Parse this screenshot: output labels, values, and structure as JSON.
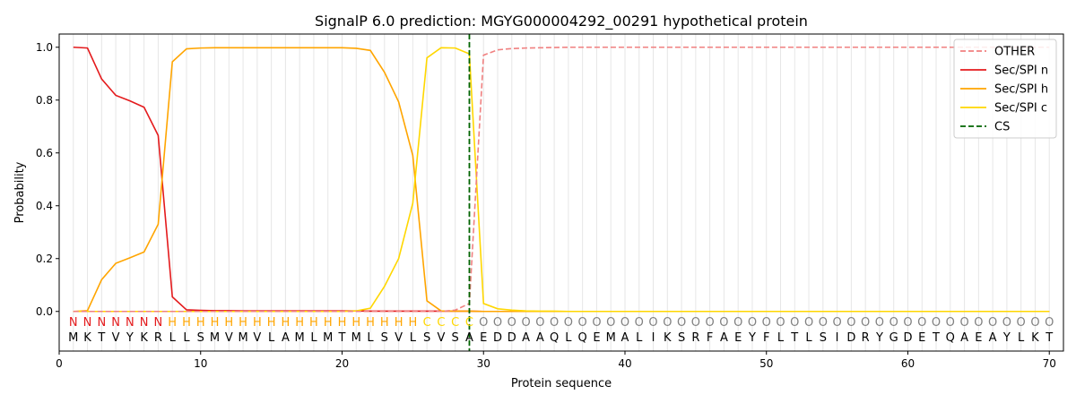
{
  "chart_data": {
    "type": "line",
    "title": "SignalP 6.0 prediction: MGYG000004292_00291 hypothetical protein",
    "xlabel": "Protein sequence",
    "ylabel": "Probability",
    "xlim": [
      0,
      71
    ],
    "ylim": [
      -0.15,
      1.05
    ],
    "xticks": [
      0,
      10,
      20,
      30,
      40,
      50,
      60,
      70
    ],
    "yticks": [
      0.0,
      0.2,
      0.4,
      0.6,
      0.8,
      1.0
    ],
    "xtick_labels": [
      "0",
      "10",
      "20",
      "30",
      "40",
      "50",
      "60",
      "70"
    ],
    "ytick_labels": [
      "0.0",
      "0.2",
      "0.4",
      "0.6",
      "0.8",
      "1.0"
    ],
    "grid": "vertical lines at each residue",
    "legend_position": "top-right",
    "sequence": [
      "M",
      "K",
      "T",
      "V",
      "Y",
      "K",
      "R",
      "L",
      "L",
      "S",
      "M",
      "V",
      "M",
      "V",
      "L",
      "A",
      "M",
      "L",
      "M",
      "T",
      "M",
      "L",
      "S",
      "V",
      "L",
      "S",
      "V",
      "S",
      "A",
      "E",
      "D",
      "D",
      "A",
      "A",
      "Q",
      "L",
      "Q",
      "E",
      "M",
      "A",
      "L",
      "I",
      "K",
      "S",
      "R",
      "F",
      "A",
      "E",
      "Y",
      "F",
      "L",
      "T",
      "L",
      "S",
      "I",
      "D",
      "R",
      "Y",
      "G",
      "D",
      "E",
      "T",
      "Q",
      "A",
      "E",
      "A",
      "Y",
      "L",
      "K",
      "T"
    ],
    "labels": [
      "N",
      "N",
      "N",
      "N",
      "N",
      "N",
      "N",
      "H",
      "H",
      "H",
      "H",
      "H",
      "H",
      "H",
      "H",
      "H",
      "H",
      "H",
      "H",
      "H",
      "H",
      "H",
      "H",
      "H",
      "H",
      "C",
      "C",
      "C",
      "C",
      "O",
      "O",
      "O",
      "O",
      "O",
      "O",
      "O",
      "O",
      "O",
      "O",
      "O",
      "O",
      "O",
      "O",
      "O",
      "O",
      "O",
      "O",
      "O",
      "O",
      "O",
      "O",
      "O",
      "O",
      "O",
      "O",
      "O",
      "O",
      "O",
      "O",
      "O",
      "O",
      "O",
      "O",
      "O",
      "O",
      "O",
      "O",
      "O",
      "O",
      "O"
    ],
    "label_colors": {
      "N": "#e41a1c",
      "H": "#ffa500",
      "C": "#ffd700",
      "O": "#808080"
    },
    "cs_position": 29,
    "series": [
      {
        "name": "OTHER",
        "color": "#f08080",
        "dash": true,
        "values": [
          0,
          0,
          0,
          0,
          0,
          0,
          0,
          0,
          0,
          0,
          0,
          0,
          0,
          0,
          0,
          0,
          0,
          0,
          0,
          0,
          0,
          0,
          0,
          0,
          0,
          0,
          0,
          0.005,
          0.03,
          0.97,
          0.99,
          0.995,
          0.997,
          0.998,
          0.999,
          1,
          1,
          1,
          1,
          1,
          1,
          1,
          1,
          1,
          1,
          1,
          1,
          1,
          1,
          1,
          1,
          1,
          1,
          1,
          1,
          1,
          1,
          1,
          1,
          1,
          1,
          1,
          1,
          1,
          1,
          1,
          1,
          1,
          1,
          1
        ]
      },
      {
        "name": "Sec/SPI n",
        "color": "#e41a1c",
        "dash": false,
        "values": [
          1.0,
          0.997,
          0.88,
          0.818,
          0.797,
          0.773,
          0.666,
          0.055,
          0.006,
          0.004,
          0.003,
          0.003,
          0.002,
          0.002,
          0.002,
          0.002,
          0.002,
          0.002,
          0.002,
          0.002,
          0.002,
          0.001,
          0.001,
          0.001,
          0.001,
          0.001,
          0.001,
          0.001,
          0.001,
          0,
          0,
          0,
          0,
          0,
          0,
          0,
          0,
          0,
          0,
          0,
          0,
          0,
          0,
          0,
          0,
          0,
          0,
          0,
          0,
          0,
          0,
          0,
          0,
          0,
          0,
          0,
          0,
          0,
          0,
          0,
          0,
          0,
          0,
          0,
          0,
          0,
          0,
          0,
          0,
          0
        ]
      },
      {
        "name": "Sec/SPI h",
        "color": "#ffa500",
        "dash": false,
        "values": [
          0,
          0.003,
          0.12,
          0.182,
          0.203,
          0.225,
          0.33,
          0.945,
          0.994,
          0.997,
          0.998,
          0.998,
          0.998,
          0.998,
          0.998,
          0.998,
          0.998,
          0.998,
          0.998,
          0.998,
          0.996,
          0.988,
          0.905,
          0.793,
          0.59,
          0.04,
          0.002,
          0.001,
          0.001,
          0,
          0,
          0,
          0,
          0,
          0,
          0,
          0,
          0,
          0,
          0,
          0,
          0,
          0,
          0,
          0,
          0,
          0,
          0,
          0,
          0,
          0,
          0,
          0,
          0,
          0,
          0,
          0,
          0,
          0,
          0,
          0,
          0,
          0,
          0,
          0,
          0,
          0,
          0,
          0,
          0
        ]
      },
      {
        "name": "Sec/SPI c",
        "color": "#ffd700",
        "dash": false,
        "values": [
          0,
          0,
          0,
          0,
          0,
          0,
          0,
          0,
          0,
          0,
          0,
          0,
          0,
          0,
          0,
          0,
          0,
          0,
          0,
          0,
          0.002,
          0.012,
          0.095,
          0.2,
          0.41,
          0.96,
          0.998,
          0.997,
          0.975,
          0.03,
          0.01,
          0.005,
          0.002,
          0.001,
          0.001,
          0,
          0,
          0,
          0,
          0,
          0,
          0,
          0,
          0,
          0,
          0,
          0,
          0,
          0,
          0,
          0,
          0,
          0,
          0,
          0,
          0,
          0,
          0,
          0,
          0,
          0,
          0,
          0,
          0,
          0,
          0,
          0,
          0,
          0,
          0
        ]
      },
      {
        "name": "CS",
        "color": "#006400",
        "dash": true,
        "vertical_at": 29
      }
    ]
  }
}
